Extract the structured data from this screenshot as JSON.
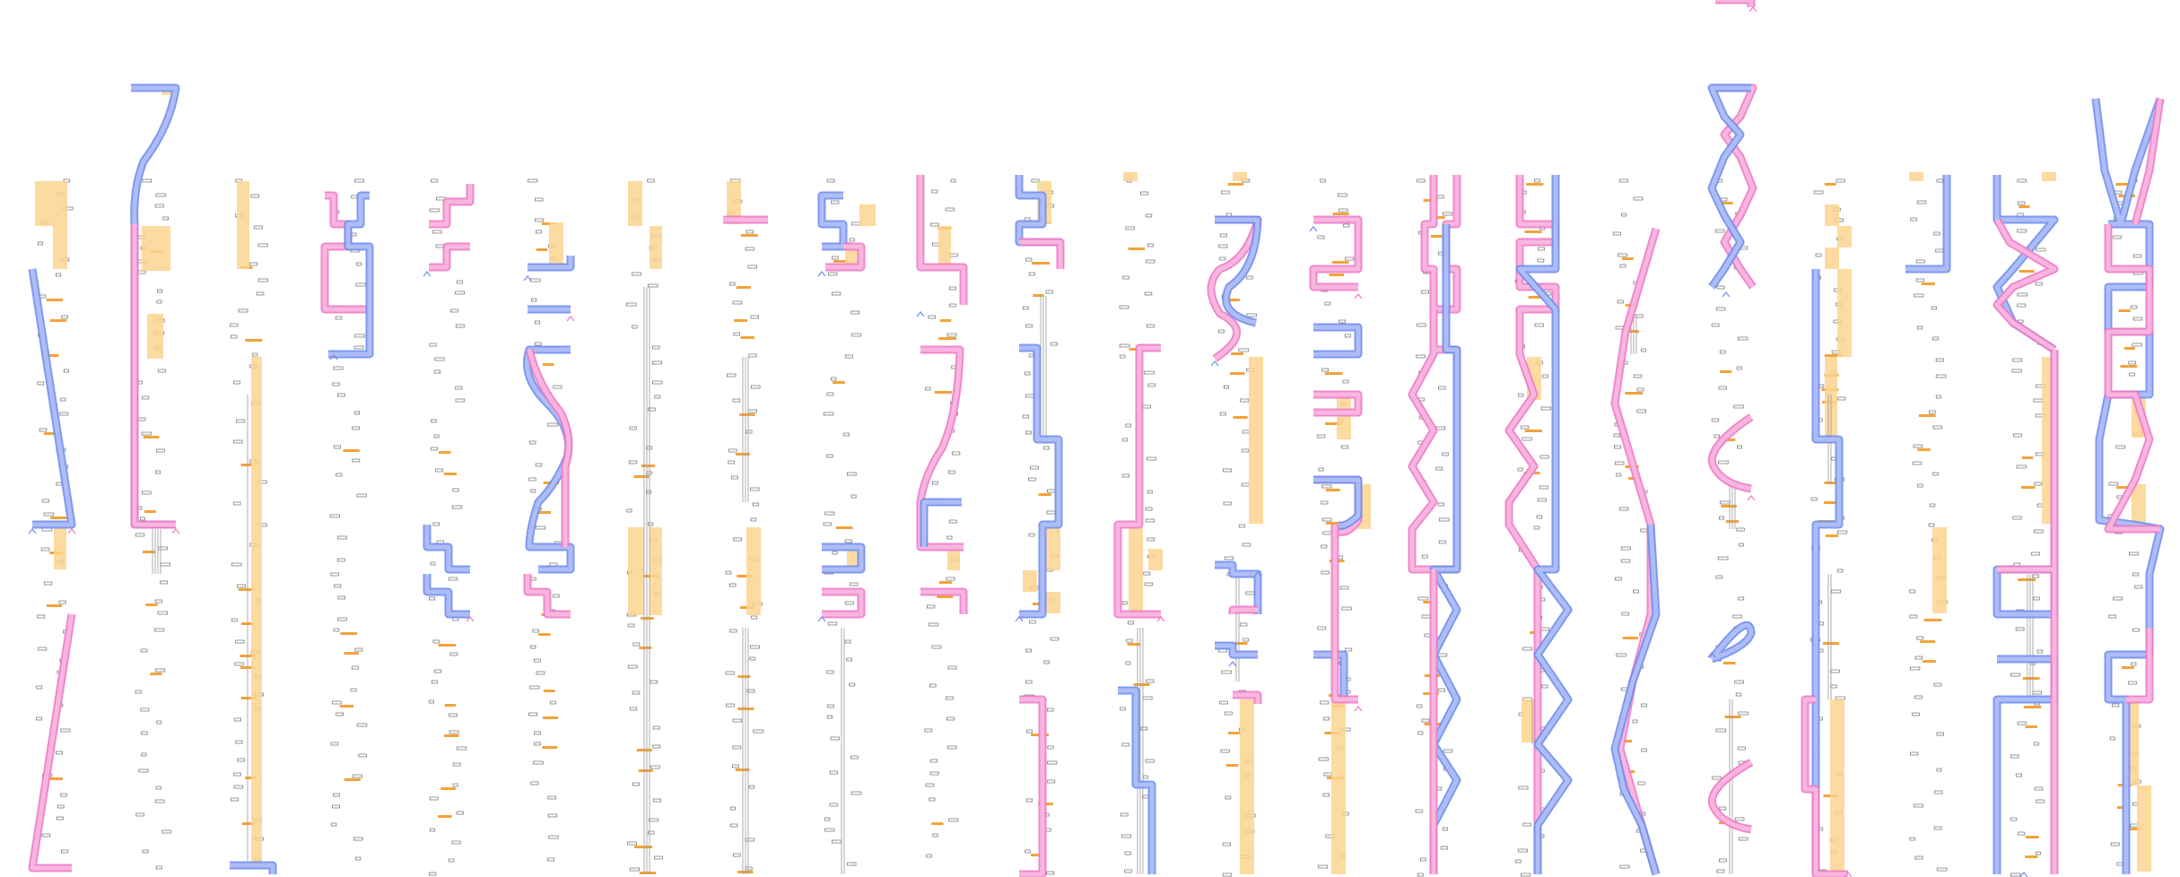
{
  "diagram": {
    "kind": "pipetting / wellplate route schematic (miniature overview)",
    "lane_count": 22,
    "legend_text": [],
    "title": "",
    "colors": {
      "background": "#ffffff",
      "blue_path": "#6f8ef0",
      "blue_path_fill": "#aebdf6",
      "pink_path": "#f07ac8",
      "pink_path_fill": "#f8b6df",
      "highlight_block": "#fdd48f",
      "dash_marker": "#f2a33a",
      "tick_text": "#6e6e6e",
      "rail_line": "#9a9a9a"
    },
    "icons": [
      "caret-up-icon"
    ],
    "lanes": [
      {
        "index": 1,
        "blue_path": "diagonal-descending",
        "pink_path": "diagonal-lower",
        "blocks": "top-and-middle",
        "rails": false
      },
      {
        "index": 2,
        "blue_path": "curved-top",
        "pink_path": "long-vertical",
        "blocks": "top-mid",
        "rails": true
      },
      {
        "index": 3,
        "blue_path": "bottom-corner",
        "pink_path": "none",
        "blocks": "long-column",
        "rails": false
      },
      {
        "index": 4,
        "blue_path": "bracket-top",
        "pink_path": "bracket-top",
        "blocks": "none",
        "rails": false
      },
      {
        "index": 5,
        "blue_path": "bracket-top",
        "pink_path": "bracket-top",
        "blocks": "none",
        "rails": false
      },
      {
        "index": 6,
        "blue_path": "s-curve",
        "pink_path": "s-curve",
        "blocks": "top",
        "rails": true
      },
      {
        "index": 7,
        "blue_path": "none",
        "pink_path": "none",
        "blocks": "top-and-middle",
        "rails": true
      },
      {
        "index": 8,
        "blue_path": "none",
        "pink_path": "short-bar",
        "blocks": "top-and-middle",
        "rails": true
      },
      {
        "index": 9,
        "blue_path": "bracket-top",
        "pink_path": "bracket-top",
        "blocks": "scattered",
        "rails": false
      },
      {
        "index": 10,
        "blue_path": "long-s-curve",
        "pink_path": "long-s-curve",
        "blocks": "top-and-middle",
        "rails": false
      },
      {
        "index": 11,
        "blue_path": "stair-descending",
        "pink_path": "stair-lower",
        "blocks": "checker",
        "rails": true
      },
      {
        "index": 12,
        "blue_path": "stair-lower",
        "pink_path": "stair-mid",
        "blocks": "checker",
        "rails": true
      },
      {
        "index": 13,
        "blue_path": "twisted-top",
        "pink_path": "twisted-top",
        "blocks": "long-column",
        "rails": false
      },
      {
        "index": 14,
        "blue_path": "bracket-stack",
        "pink_path": "bracket-stack",
        "blocks": "long-column",
        "rails": false
      },
      {
        "index": 15,
        "blue_path": "zigzag",
        "pink_path": "zigzag",
        "blocks": "none",
        "rails": false
      },
      {
        "index": 16,
        "blue_path": "zigzag",
        "pink_path": "zigzag",
        "blocks": "mid",
        "rails": true
      },
      {
        "index": 17,
        "blue_path": "long-diagonal",
        "pink_path": "long-diagonal",
        "blocks": "none",
        "rails": true
      },
      {
        "index": 18,
        "blue_path": "braid-top",
        "pink_path": "arcs",
        "blocks": "none",
        "rails": true
      },
      {
        "index": 19,
        "blue_path": "vertical-steps",
        "pink_path": "vertical-steps",
        "blocks": "scattered",
        "rails": false
      },
      {
        "index": 20,
        "blue_path": "corner-top",
        "pink_path": "none",
        "blocks": "top",
        "rails": true
      },
      {
        "index": 21,
        "blue_path": "x-cross",
        "pink_path": "x-cross",
        "blocks": "long-column",
        "rails": false
      },
      {
        "index": 22,
        "blue_path": "wave",
        "pink_path": "wave",
        "blocks": "scattered",
        "rails": false
      }
    ]
  }
}
